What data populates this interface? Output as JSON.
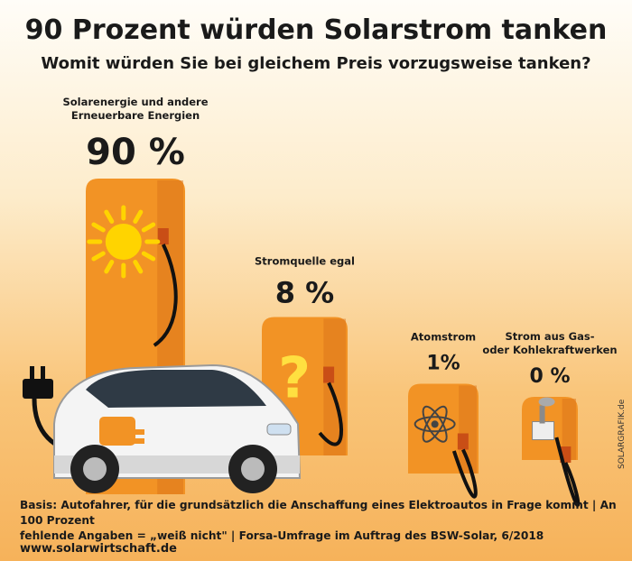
{
  "header": {
    "title": "90 Prozent würden Solarstrom tanken",
    "subtitle": "Womit würden Sie bei gleichem Preis vorzugsweise tanken?"
  },
  "chart_data": {
    "type": "bar",
    "title": "90 Prozent würden Solarstrom tanken",
    "subtitle": "Womit würden Sie bei gleichem Preis vorzugsweise tanken?",
    "categories": [
      [
        "Solarenergie und andere",
        "Erneuerbare Energien"
      ],
      [
        "Stromquelle egal"
      ],
      [
        "Atomstrom"
      ],
      [
        "Strom aus Gas-",
        "oder Kohlekraftwerken"
      ]
    ],
    "values": [
      90,
      8,
      1,
      0
    ],
    "value_labels": [
      "90 %",
      "8 %",
      "1%",
      "0 %"
    ],
    "icons": [
      "sun-icon",
      "question-mark-icon",
      "atom-icon",
      "power-plant-icon"
    ],
    "unit": "%",
    "colors": {
      "pump": "#f29325",
      "pump_shadow": "#d9731a",
      "sun": "#ffd400",
      "question": "#ffe040",
      "icon_gray": "#8a8a8a"
    }
  },
  "footer": {
    "note_line1": "Basis: Autofahrer, für die grundsätzlich die Anschaffung eines Elektroautos in Frage kommt | An 100 Prozent",
    "note_line2": "fehlende Angaben = „weiß nicht\" | Forsa-Umfrage im Auftrag des BSW-Solar, 6/2018",
    "url": "www.solarwirtschaft.de",
    "credit": "SOLARGRAFIK.de"
  }
}
